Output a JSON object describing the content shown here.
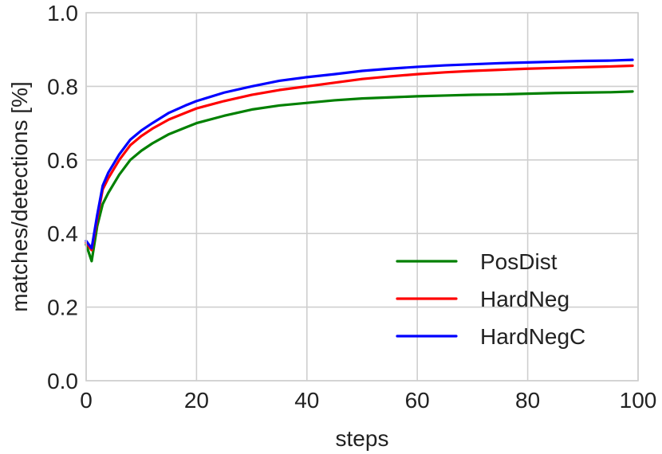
{
  "chart_data": {
    "type": "line",
    "title": "",
    "xlabel": "steps",
    "ylabel": "matches/detections [%]",
    "xlim": [
      0,
      100
    ],
    "ylim": [
      0.0,
      1.0
    ],
    "xticks": [
      0,
      20,
      40,
      60,
      80,
      100
    ],
    "yticks": [
      0.0,
      0.2,
      0.4,
      0.6,
      0.8,
      1.0
    ],
    "xtick_labels": [
      "0",
      "20",
      "40",
      "60",
      "80",
      "100"
    ],
    "ytick_labels": [
      "0.0",
      "0.2",
      "0.4",
      "0.6",
      "0.8",
      "1.0"
    ],
    "grid": true,
    "legend_position": "bottom-right",
    "series": [
      {
        "name": "PosDist",
        "color": "#008000",
        "x": [
          0,
          1,
          2,
          3,
          4,
          5,
          6,
          7,
          8,
          10,
          12,
          15,
          18,
          20,
          25,
          30,
          35,
          40,
          45,
          50,
          55,
          60,
          65,
          70,
          75,
          80,
          85,
          90,
          95,
          99
        ],
        "y": [
          0.37,
          0.325,
          0.42,
          0.48,
          0.51,
          0.535,
          0.56,
          0.58,
          0.6,
          0.625,
          0.645,
          0.67,
          0.688,
          0.7,
          0.72,
          0.737,
          0.748,
          0.755,
          0.762,
          0.767,
          0.77,
          0.773,
          0.775,
          0.777,
          0.778,
          0.78,
          0.782,
          0.783,
          0.784,
          0.786
        ]
      },
      {
        "name": "HardNeg",
        "color": "#ff0000",
        "x": [
          0,
          1,
          2,
          3,
          4,
          5,
          6,
          7,
          8,
          10,
          12,
          15,
          18,
          20,
          25,
          30,
          35,
          40,
          45,
          50,
          55,
          60,
          65,
          70,
          75,
          80,
          85,
          90,
          95,
          99
        ],
        "y": [
          0.375,
          0.355,
          0.44,
          0.52,
          0.55,
          0.575,
          0.6,
          0.62,
          0.64,
          0.665,
          0.685,
          0.71,
          0.728,
          0.74,
          0.76,
          0.777,
          0.79,
          0.8,
          0.81,
          0.82,
          0.827,
          0.833,
          0.838,
          0.842,
          0.845,
          0.848,
          0.85,
          0.852,
          0.854,
          0.856
        ]
      },
      {
        "name": "HardNegC",
        "color": "#0000ff",
        "x": [
          0,
          1,
          2,
          3,
          4,
          5,
          6,
          7,
          8,
          10,
          12,
          15,
          18,
          20,
          25,
          30,
          35,
          40,
          45,
          50,
          55,
          60,
          65,
          70,
          75,
          80,
          85,
          90,
          95,
          99
        ],
        "y": [
          0.38,
          0.36,
          0.45,
          0.53,
          0.565,
          0.59,
          0.615,
          0.635,
          0.655,
          0.68,
          0.7,
          0.728,
          0.748,
          0.76,
          0.783,
          0.8,
          0.815,
          0.825,
          0.833,
          0.842,
          0.848,
          0.853,
          0.857,
          0.86,
          0.863,
          0.865,
          0.867,
          0.869,
          0.87,
          0.872
        ]
      }
    ]
  }
}
